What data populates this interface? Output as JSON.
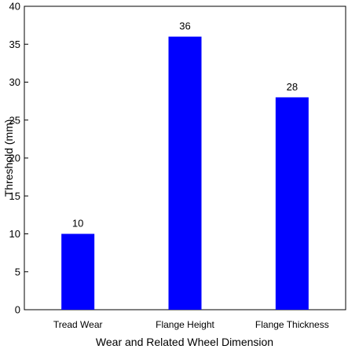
{
  "chart_data": {
    "type": "bar",
    "categories": [
      "Tread Wear",
      "Flange Height",
      "Flange Thickness"
    ],
    "values": [
      10,
      36,
      28
    ],
    "data_labels": [
      "10",
      "36",
      "28"
    ],
    "xlabel": "Wear and Related Wheel Dimension",
    "ylabel": "Threshold (mm)",
    "ylim": [
      0,
      40
    ],
    "yticks": [
      0,
      5,
      10,
      15,
      20,
      25,
      30,
      35,
      40
    ],
    "grid": false,
    "bar_color": "#0000ff"
  }
}
